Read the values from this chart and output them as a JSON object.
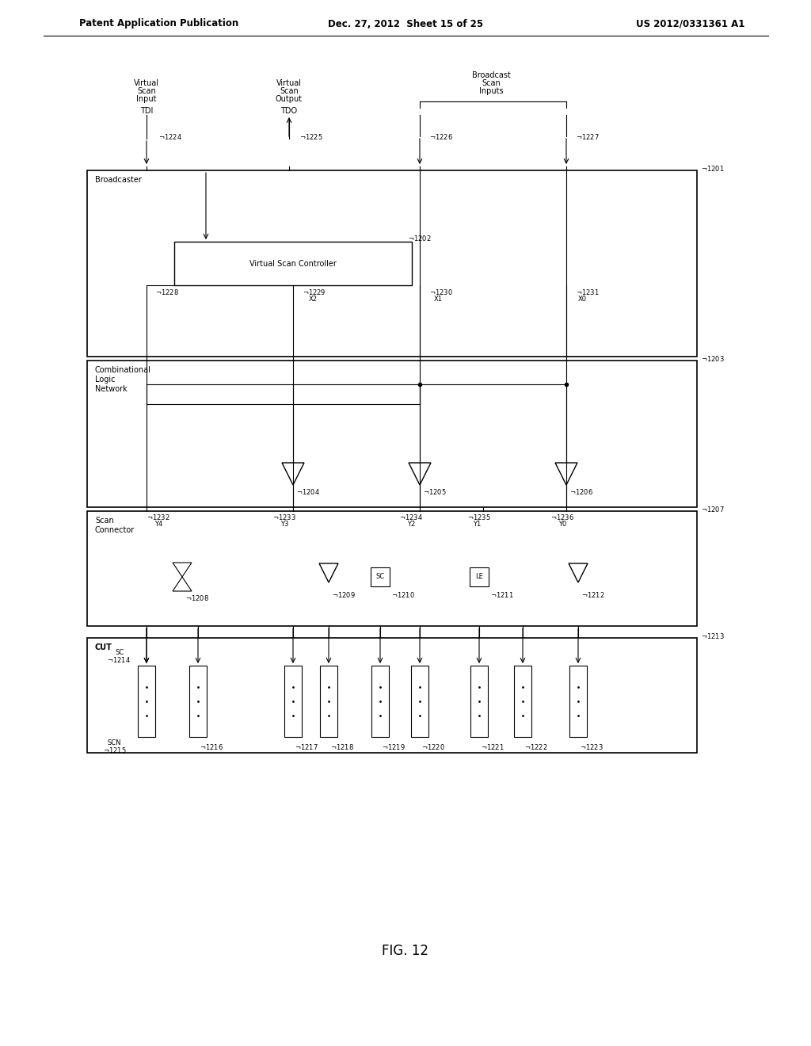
{
  "bg_color": "#ffffff",
  "line_color": "#000000",
  "header_left": "Patent Application Publication",
  "header_mid": "Dec. 27, 2012  Sheet 15 of 25",
  "header_right": "US 2012/0331361 A1",
  "figure_label": "FIG. 12",
  "title_fontsize": 10,
  "fig_width": 10.24,
  "fig_height": 13.2
}
